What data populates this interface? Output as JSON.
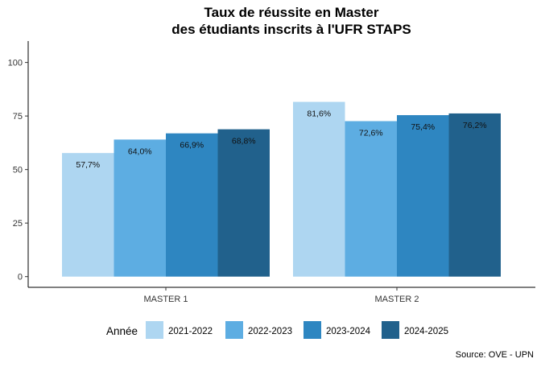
{
  "chart_data": {
    "type": "bar",
    "title_lines": [
      "Taux de réussite en Master",
      "des étudiants inscrits à l'UFR STAPS"
    ],
    "categories": [
      "MASTER 1",
      "MASTER 2"
    ],
    "series": [
      {
        "name": "2021-2022",
        "color": "#aed6f1",
        "values": [
          57.7,
          81.6
        ],
        "labels": [
          "57,7%",
          "81,6%"
        ]
      },
      {
        "name": "2022-2023",
        "color": "#5dade2",
        "values": [
          64.0,
          72.6
        ],
        "labels": [
          "64,0%",
          "72,6%"
        ]
      },
      {
        "name": "2023-2024",
        "color": "#2e86c1",
        "values": [
          66.9,
          75.4
        ],
        "labels": [
          "66,9%",
          "75,4%"
        ]
      },
      {
        "name": "2024-2025",
        "color": "#21618c",
        "values": [
          68.8,
          76.2
        ],
        "labels": [
          "68,8%",
          "76,2%"
        ]
      }
    ],
    "yticks": [
      0,
      25,
      50,
      75,
      100
    ],
    "ylim": [
      -5,
      110
    ],
    "legend_title": "Année",
    "legend_position": "bottom",
    "caption": "Source: OVE - UPN",
    "xlabel": "",
    "ylabel": ""
  }
}
